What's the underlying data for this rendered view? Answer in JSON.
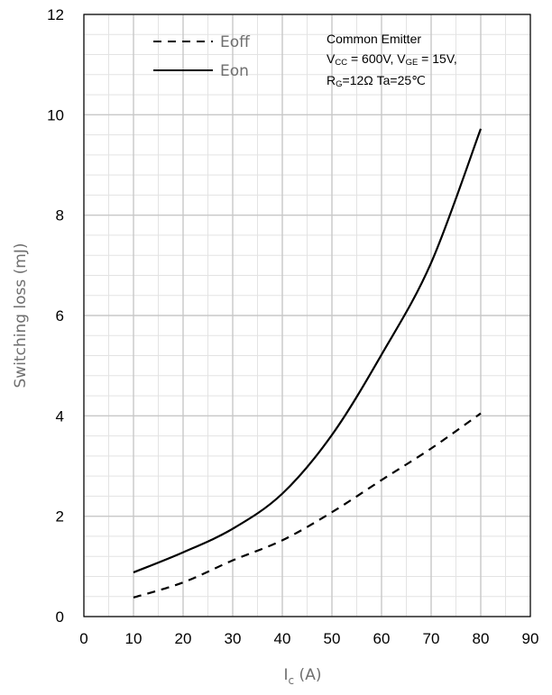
{
  "chart_data": {
    "type": "line",
    "xlabel": {
      "main": "I",
      "sub": "c",
      "unit": " (A)"
    },
    "ylabel": "Switching loss (mJ)",
    "xlim": [
      0,
      90
    ],
    "ylim": [
      0,
      12
    ],
    "x_ticks": [
      "0",
      "10",
      "20",
      "30",
      "40",
      "50",
      "60",
      "70",
      "80",
      "90"
    ],
    "y_ticks": [
      "0",
      "2",
      "4",
      "6",
      "8",
      "10",
      "12"
    ],
    "minor_grid": {
      "x_step": 5,
      "y_step": 0.4
    },
    "grid": true,
    "legend_position": "top-left",
    "series": [
      {
        "name": "Eoff",
        "style": "dashed",
        "color": "#000000",
        "x": [
          10,
          20,
          30,
          40,
          50,
          60,
          70,
          80
        ],
        "y": [
          0.38,
          0.68,
          1.12,
          1.52,
          2.08,
          2.72,
          3.35,
          4.05
        ]
      },
      {
        "name": "Eon",
        "style": "solid",
        "color": "#000000",
        "x": [
          10,
          20,
          30,
          40,
          50,
          60,
          70,
          80
        ],
        "y": [
          0.88,
          1.28,
          1.75,
          2.45,
          3.62,
          5.22,
          7.05,
          9.72
        ]
      }
    ],
    "annotation": {
      "line1": "Common Emitter",
      "line2": [
        {
          "t": "V"
        },
        {
          "t": "CC",
          "sub": true
        },
        {
          "t": " = 600V, V"
        },
        {
          "t": "GE",
          "sub": true
        },
        {
          "t": " = 15V,"
        }
      ],
      "line3": [
        {
          "t": "R"
        },
        {
          "t": "G",
          "sub": true
        },
        {
          "t": "=12Ω    Ta=25℃"
        }
      ]
    }
  }
}
